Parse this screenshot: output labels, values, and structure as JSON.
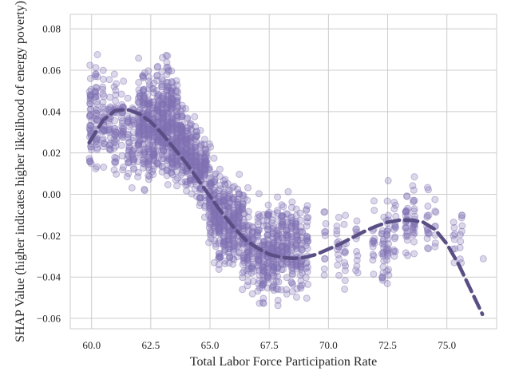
{
  "chart_data": {
    "type": "scatter",
    "title": "",
    "xlabel": "Total Labor Force Participation Rate",
    "ylabel": "SHAP Value (higher indicates higher likelihood of energy poverty)",
    "xlim": [
      59.1,
      77.1
    ],
    "ylim": [
      -0.065,
      0.087
    ],
    "xticks": [
      60.0,
      62.5,
      65.0,
      67.5,
      70.0,
      72.5,
      75.0
    ],
    "xtick_labels": [
      "60.0",
      "62.5",
      "65.0",
      "67.5",
      "70.0",
      "72.5",
      "75.0"
    ],
    "yticks": [
      -0.06,
      -0.04,
      -0.02,
      0.0,
      0.02,
      0.04,
      0.06,
      0.08
    ],
    "ytick_labels": [
      "−0.06",
      "−0.04",
      "−0.02",
      "0.00",
      "0.02",
      "0.04",
      "0.06",
      "0.08"
    ],
    "grid": true,
    "point_color": "#8172b3",
    "trend_color": "#5a4e84",
    "point_columns": [
      {
        "x": 59.95,
        "mean": 0.035,
        "spread": 0.012,
        "n": 40
      },
      {
        "x": 60.2,
        "mean": 0.04,
        "spread": 0.012,
        "n": 40
      },
      {
        "x": 60.5,
        "mean": 0.036,
        "spread": 0.011,
        "n": 30
      },
      {
        "x": 60.75,
        "mean": 0.032,
        "spread": 0.01,
        "n": 25
      },
      {
        "x": 61.0,
        "mean": 0.035,
        "spread": 0.011,
        "n": 35
      },
      {
        "x": 61.3,
        "mean": 0.034,
        "spread": 0.01,
        "n": 30
      },
      {
        "x": 61.55,
        "mean": 0.025,
        "spread": 0.01,
        "n": 25
      },
      {
        "x": 61.75,
        "mean": 0.028,
        "spread": 0.011,
        "n": 25
      },
      {
        "x": 62.0,
        "mean": 0.034,
        "spread": 0.012,
        "n": 50
      },
      {
        "x": 62.2,
        "mean": 0.035,
        "spread": 0.013,
        "n": 70
      },
      {
        "x": 62.4,
        "mean": 0.033,
        "spread": 0.012,
        "n": 70
      },
      {
        "x": 62.6,
        "mean": 0.028,
        "spread": 0.011,
        "n": 55
      },
      {
        "x": 62.8,
        "mean": 0.032,
        "spread": 0.012,
        "n": 60
      },
      {
        "x": 63.0,
        "mean": 0.036,
        "spread": 0.012,
        "n": 80
      },
      {
        "x": 63.2,
        "mean": 0.035,
        "spread": 0.013,
        "n": 80
      },
      {
        "x": 63.4,
        "mean": 0.033,
        "spread": 0.012,
        "n": 80
      },
      {
        "x": 63.6,
        "mean": 0.03,
        "spread": 0.011,
        "n": 70
      },
      {
        "x": 63.8,
        "mean": 0.026,
        "spread": 0.01,
        "n": 60
      },
      {
        "x": 64.0,
        "mean": 0.022,
        "spread": 0.01,
        "n": 55
      },
      {
        "x": 64.2,
        "mean": 0.019,
        "spread": 0.009,
        "n": 50
      },
      {
        "x": 64.4,
        "mean": 0.017,
        "spread": 0.009,
        "n": 45
      },
      {
        "x": 64.6,
        "mean": 0.012,
        "spread": 0.009,
        "n": 45
      },
      {
        "x": 64.8,
        "mean": 0.01,
        "spread": 0.008,
        "n": 45
      },
      {
        "x": 65.0,
        "mean": -0.002,
        "spread": 0.009,
        "n": 50
      },
      {
        "x": 65.2,
        "mean": -0.008,
        "spread": 0.01,
        "n": 55
      },
      {
        "x": 65.4,
        "mean": -0.012,
        "spread": 0.01,
        "n": 55
      },
      {
        "x": 65.6,
        "mean": -0.01,
        "spread": 0.01,
        "n": 50
      },
      {
        "x": 65.8,
        "mean": -0.014,
        "spread": 0.01,
        "n": 50
      },
      {
        "x": 66.0,
        "mean": -0.016,
        "spread": 0.01,
        "n": 50
      },
      {
        "x": 66.2,
        "mean": -0.015,
        "spread": 0.01,
        "n": 45
      },
      {
        "x": 66.4,
        "mean": -0.02,
        "spread": 0.01,
        "n": 45
      },
      {
        "x": 66.6,
        "mean": -0.025,
        "spread": 0.01,
        "n": 40
      },
      {
        "x": 66.8,
        "mean": -0.03,
        "spread": 0.009,
        "n": 30
      },
      {
        "x": 67.05,
        "mean": -0.028,
        "spread": 0.01,
        "n": 40
      },
      {
        "x": 67.25,
        "mean": -0.03,
        "spread": 0.01,
        "n": 40
      },
      {
        "x": 67.45,
        "mean": -0.027,
        "spread": 0.011,
        "n": 45
      },
      {
        "x": 67.65,
        "mean": -0.028,
        "spread": 0.011,
        "n": 45
      },
      {
        "x": 67.85,
        "mean": -0.026,
        "spread": 0.011,
        "n": 40
      },
      {
        "x": 68.05,
        "mean": -0.025,
        "spread": 0.011,
        "n": 40
      },
      {
        "x": 68.25,
        "mean": -0.024,
        "spread": 0.011,
        "n": 35
      },
      {
        "x": 68.45,
        "mean": -0.026,
        "spread": 0.011,
        "n": 35
      },
      {
        "x": 68.65,
        "mean": -0.025,
        "spread": 0.011,
        "n": 35
      },
      {
        "x": 68.85,
        "mean": -0.026,
        "spread": 0.011,
        "n": 30
      },
      {
        "x": 69.1,
        "mean": -0.024,
        "spread": 0.01,
        "n": 25
      },
      {
        "x": 69.85,
        "mean": -0.022,
        "spread": 0.008,
        "n": 10
      },
      {
        "x": 70.4,
        "mean": -0.026,
        "spread": 0.009,
        "n": 15
      },
      {
        "x": 70.7,
        "mean": -0.032,
        "spread": 0.008,
        "n": 12
      },
      {
        "x": 71.2,
        "mean": -0.024,
        "spread": 0.008,
        "n": 12
      },
      {
        "x": 71.9,
        "mean": -0.026,
        "spread": 0.009,
        "n": 15
      },
      {
        "x": 72.3,
        "mean": -0.026,
        "spread": 0.009,
        "n": 20
      },
      {
        "x": 72.5,
        "mean": -0.022,
        "spread": 0.01,
        "n": 25
      },
      {
        "x": 72.8,
        "mean": -0.018,
        "spread": 0.009,
        "n": 15
      },
      {
        "x": 73.3,
        "mean": -0.014,
        "spread": 0.009,
        "n": 25
      },
      {
        "x": 73.6,
        "mean": -0.01,
        "spread": 0.009,
        "n": 25
      },
      {
        "x": 74.2,
        "mean": -0.014,
        "spread": 0.008,
        "n": 15
      },
      {
        "x": 74.5,
        "mean": -0.01,
        "spread": 0.007,
        "n": 8
      },
      {
        "x": 75.3,
        "mean": -0.022,
        "spread": 0.007,
        "n": 8
      },
      {
        "x": 75.6,
        "mean": -0.02,
        "spread": 0.008,
        "n": 10
      },
      {
        "x": 76.5,
        "mean": -0.032,
        "spread": 0.002,
        "n": 1
      }
    ],
    "trend_line": {
      "style": "dashed",
      "x": [
        59.9,
        60.5,
        61.0,
        61.5,
        62.0,
        62.5,
        63.0,
        63.5,
        64.0,
        64.5,
        65.0,
        65.5,
        66.0,
        66.5,
        67.0,
        67.5,
        68.0,
        68.5,
        69.0,
        69.5,
        70.0,
        70.5,
        71.0,
        71.5,
        72.0,
        72.5,
        73.0,
        73.5,
        74.0,
        74.5,
        75.0,
        75.5,
        76.0,
        76.5
      ],
      "y": [
        0.025,
        0.036,
        0.0405,
        0.041,
        0.039,
        0.035,
        0.029,
        0.022,
        0.015,
        0.007,
        -0.001,
        -0.009,
        -0.016,
        -0.022,
        -0.026,
        -0.029,
        -0.0305,
        -0.031,
        -0.0305,
        -0.029,
        -0.0265,
        -0.024,
        -0.021,
        -0.018,
        -0.0155,
        -0.0135,
        -0.0125,
        -0.0125,
        -0.0135,
        -0.017,
        -0.024,
        -0.034,
        -0.046,
        -0.058
      ]
    }
  }
}
